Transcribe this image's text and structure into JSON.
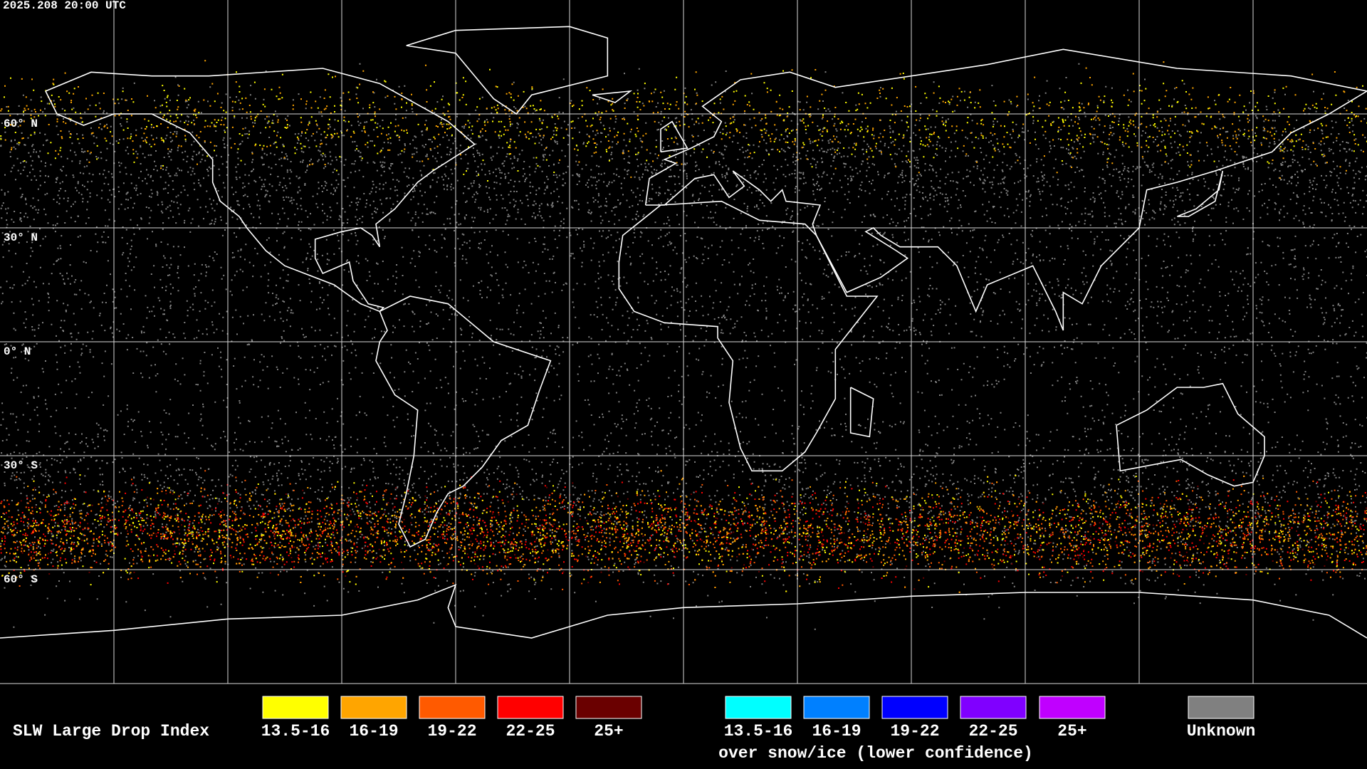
{
  "timestamp": "2025.208 20:00 UTC",
  "latitude_labels": [
    "60° N",
    "30° N",
    "0° N",
    "30° S",
    "60° S"
  ],
  "legend": {
    "title": "SLW Large Drop Index",
    "groups": [
      {
        "items": [
          {
            "label": "13.5-16",
            "color": "#ffff00"
          },
          {
            "label": "16-19",
            "color": "#ffa500"
          },
          {
            "label": "19-22",
            "color": "#ff5a00"
          },
          {
            "label": "22-25",
            "color": "#ff0000"
          },
          {
            "label": "25+",
            "color": "#6a0000"
          }
        ]
      },
      {
        "items": [
          {
            "label": "13.5-16",
            "color": "#00ffff"
          },
          {
            "label": "16-19",
            "color": "#0080ff"
          },
          {
            "label": "19-22",
            "color": "#0000ff"
          },
          {
            "label": "22-25",
            "color": "#8000ff"
          },
          {
            "label": "25+",
            "color": "#c000ff"
          }
        ],
        "caption": "over snow/ice (lower confidence)"
      }
    ],
    "unknown": {
      "label": "Unknown",
      "color": "#808080"
    }
  }
}
